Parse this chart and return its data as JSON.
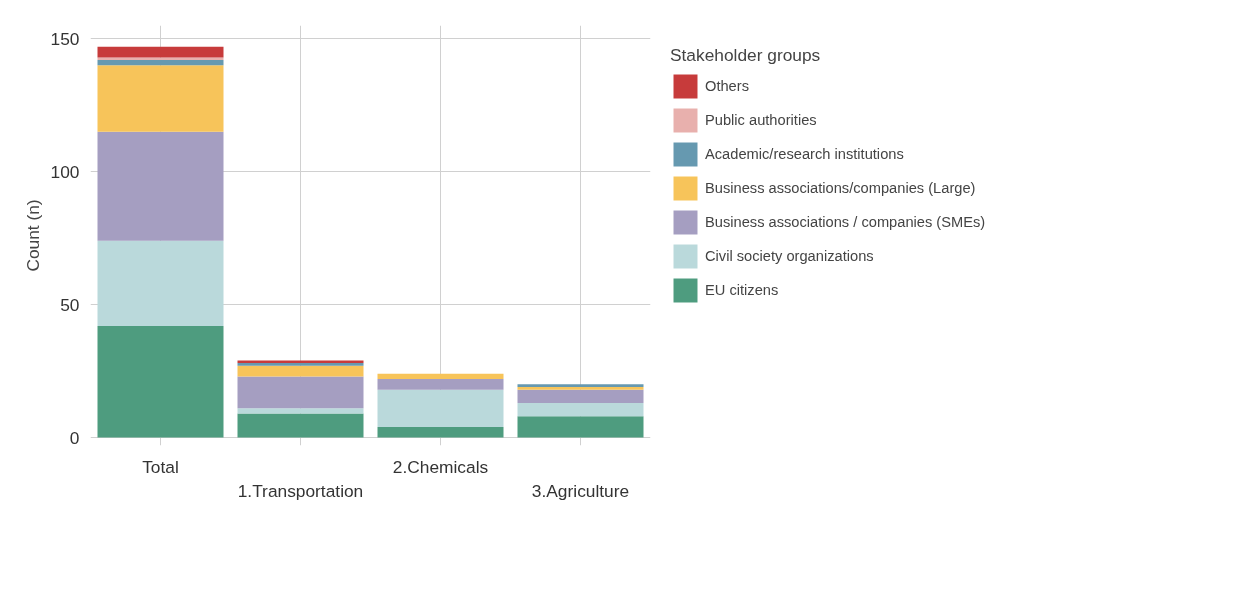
{
  "chart_data": {
    "type": "bar",
    "stacked": true,
    "ylabel": "Count (n)",
    "legend_title": "Stakeholder groups",
    "legend": "right",
    "grid": true,
    "categories": [
      "Total",
      "1.Transportation",
      "2.Chemicals",
      "3.Agriculture"
    ],
    "ylim": [
      -3,
      155
    ],
    "yticks": [
      0,
      50,
      100,
      150
    ],
    "series": [
      {
        "name": "EU citizens",
        "color": "#4e9c7f",
        "values": [
          42,
          9,
          4,
          8
        ]
      },
      {
        "name": "Civil society organizations",
        "color": "#bad9db",
        "values": [
          32,
          2,
          14,
          5
        ]
      },
      {
        "name": "Business associations / companies (SMEs)",
        "color": "#a59ec1",
        "values": [
          41,
          12,
          4,
          5
        ]
      },
      {
        "name": "Business associations/companies (Large)",
        "color": "#f7c45a",
        "values": [
          25,
          4,
          2,
          1
        ]
      },
      {
        "name": "Academic/research institutions",
        "color": "#6699b0",
        "values": [
          2,
          1,
          null,
          1
        ]
      },
      {
        "name": "Public authorities",
        "color": "#e8b0ad",
        "values": [
          1,
          null,
          null,
          null
        ]
      },
      {
        "name": "Others",
        "color": "#c73b3b",
        "values": [
          4,
          1,
          null,
          null
        ]
      }
    ]
  }
}
